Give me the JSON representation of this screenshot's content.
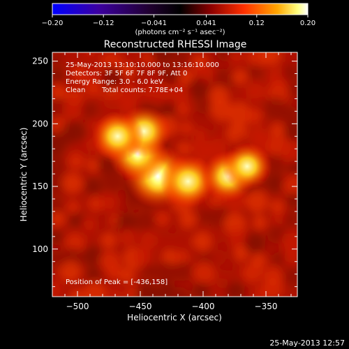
{
  "colorbar": {
    "tick_labels": [
      "-0.20",
      "-0.12",
      "-0.041",
      "0.041",
      "0.12",
      "0.20"
    ],
    "unit_label": "(photons cm⁻² s⁻¹ asec⁻²)",
    "range": [
      -0.2,
      0.2
    ],
    "colormap": [
      "#0000ff",
      "#4b0082",
      "#000000",
      "#8b0000",
      "#ff3000",
      "#ffa500",
      "#ffff80",
      "#ffffff"
    ]
  },
  "chart_data": {
    "type": "heatmap",
    "title": "Reconstructed RHESSI Image",
    "xlabel": "Heliocentric X (arcsec)",
    "ylabel": "Heliocentric Y (arcsec)",
    "xlim": [
      -520,
      -325
    ],
    "ylim": [
      62,
      257
    ],
    "x_ticks": [
      -500,
      -450,
      -400,
      -350
    ],
    "y_ticks": [
      100,
      150,
      200,
      250
    ],
    "x_tick_labels": [
      "−500",
      "−450",
      "−400",
      "−350"
    ],
    "y_tick_labels": [
      "100",
      "150",
      "200",
      "250"
    ],
    "annotations": [
      "25-May-2013 13:10:10.000 to 13:16:10.000",
      "Detectors: 3F 5F 6F 7F 8F 9F, Att 0",
      "Energy Range: 3.0 - 6.0 keV",
      "Clean",
      "Total counts: 7.78E+04"
    ],
    "peak_label": "Position of Peak = [-436,158]",
    "peak_position": [
      -436,
      158
    ],
    "sources": [
      {
        "x": -436,
        "y": 158,
        "value": 0.2
      },
      {
        "x": -452,
        "y": 176,
        "value": 0.16
      },
      {
        "x": -447,
        "y": 194,
        "value": 0.13
      },
      {
        "x": -468,
        "y": 190,
        "value": 0.12
      },
      {
        "x": -412,
        "y": 154,
        "value": 0.14
      },
      {
        "x": -380,
        "y": 158,
        "value": 0.13
      },
      {
        "x": -365,
        "y": 166,
        "value": 0.11
      }
    ],
    "background_level": 0.07
  },
  "footer": {
    "date": "25-May-2013 12:57"
  }
}
